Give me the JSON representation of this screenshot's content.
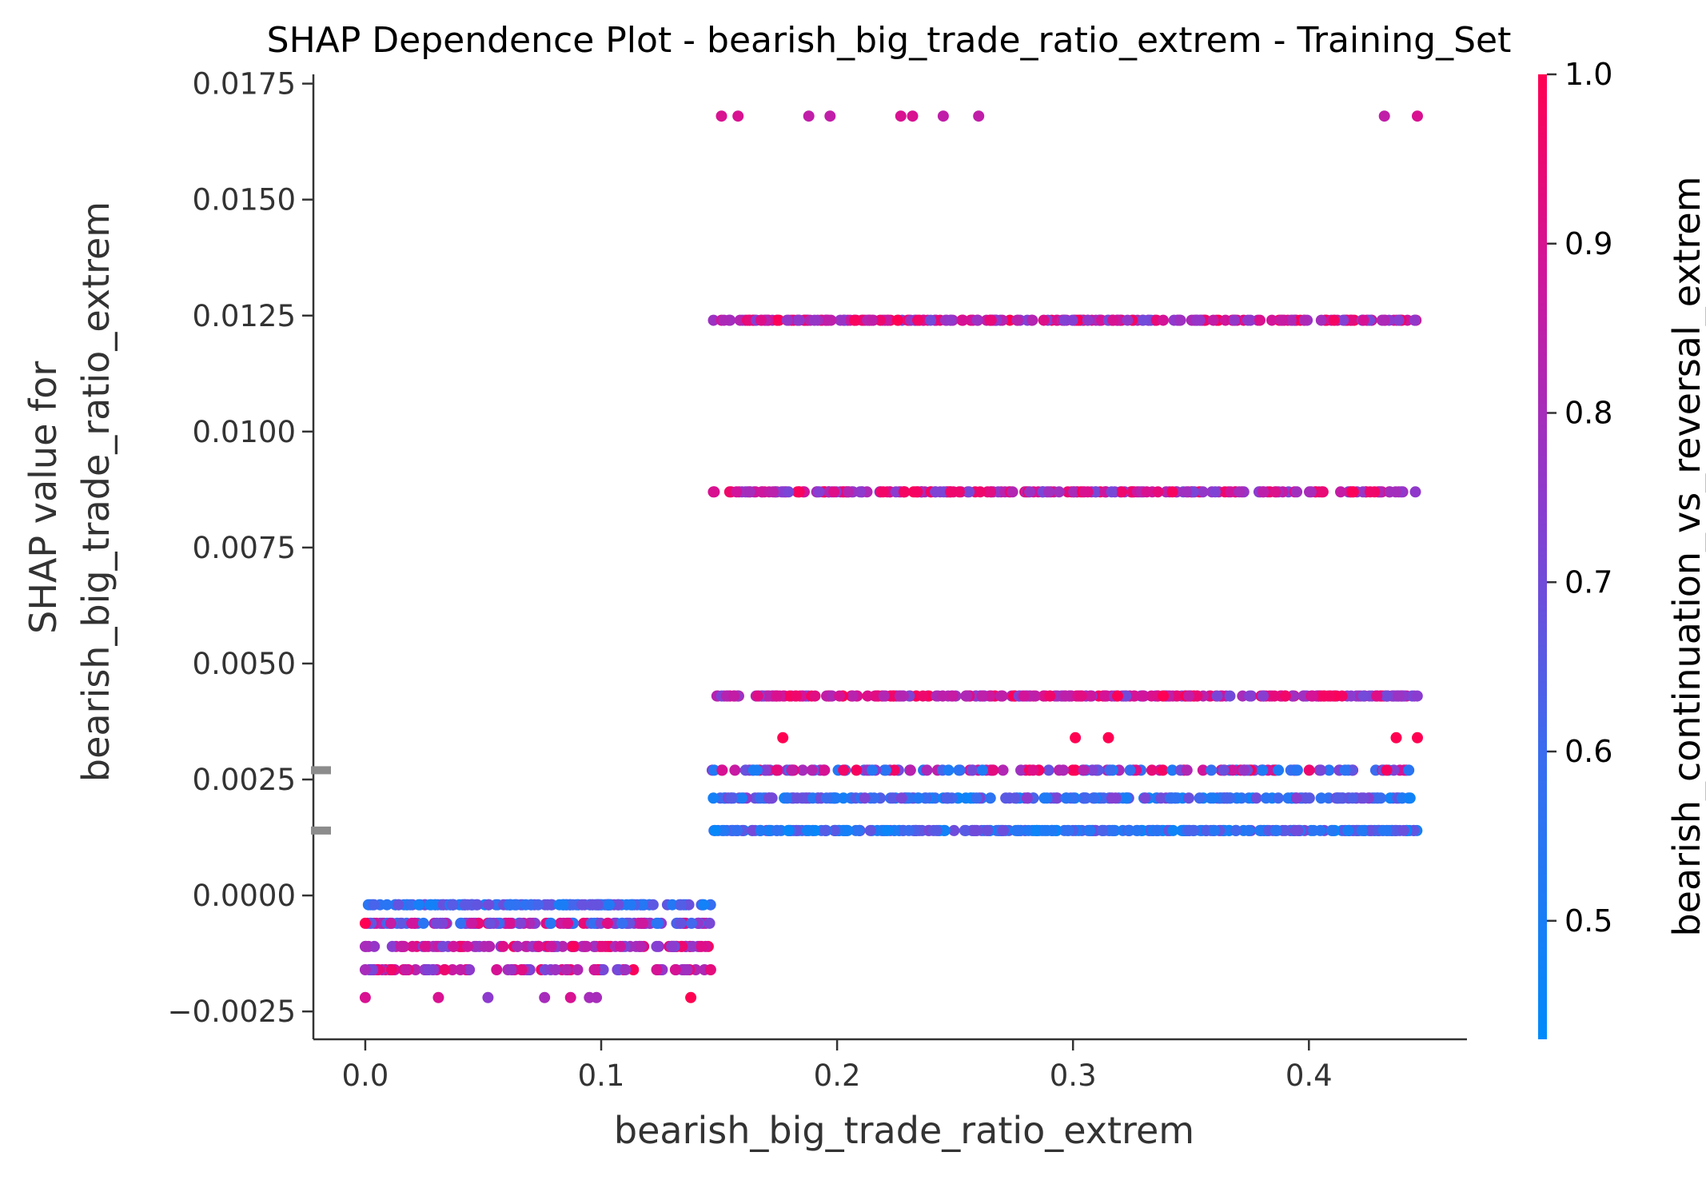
{
  "chart_data": {
    "type": "scatter",
    "title": "SHAP Dependence Plot - bearish_big_trade_ratio_extrem - Training_Set",
    "xlabel": "bearish_big_trade_ratio_extrem",
    "ylabel_lines": [
      "SHAP value for",
      "bearish_big_trade_ratio_extrem"
    ],
    "xlim": [
      -0.022,
      0.467
    ],
    "ylim": [
      -0.0031,
      0.0177
    ],
    "x_ticks": [
      0.0,
      0.1,
      0.2,
      0.3,
      0.4
    ],
    "x_tick_labels": [
      "0.0",
      "0.1",
      "0.2",
      "0.3",
      "0.4"
    ],
    "y_ticks": [
      -0.0025,
      0.0,
      0.0025,
      0.005,
      0.0075,
      0.01,
      0.0125,
      0.015,
      0.0175
    ],
    "y_tick_labels": [
      "−0.0025",
      "0.0000",
      "0.0025",
      "0.0050",
      "0.0075",
      "0.0100",
      "0.0125",
      "0.0150",
      "0.0175"
    ],
    "grid": false,
    "colorbar": {
      "label": "bearish_continuation_vs_reversal_extrem",
      "range": [
        0.43,
        1.0
      ],
      "ticks": [
        0.5,
        0.6,
        0.7,
        0.8,
        0.9,
        1.0
      ],
      "tick_labels": [
        "0.5",
        "0.6",
        "0.7",
        "0.8",
        "0.9",
        "1.0"
      ],
      "color_low": "#008bfb",
      "color_high": "#ff0052"
    },
    "histogram_marks_y": [
      0.0014,
      0.0027
    ],
    "bands": [
      {
        "y": -0.0002,
        "x_range": [
          0.0,
          0.147
        ],
        "color_range": [
          0.48,
          0.7
        ],
        "count": 140
      },
      {
        "y": -0.0006,
        "x_range": [
          0.0,
          0.147
        ],
        "color_range": [
          0.55,
          0.95
        ],
        "count": 120
      },
      {
        "y": -0.0011,
        "x_range": [
          0.0,
          0.147
        ],
        "color_range": [
          0.7,
          1.0
        ],
        "count": 110
      },
      {
        "y": -0.0016,
        "x_range": [
          0.0,
          0.147
        ],
        "color_range": [
          0.7,
          1.0
        ],
        "count": 80
      },
      {
        "y": 0.0014,
        "x_range": [
          0.147,
          0.446
        ],
        "color_range": [
          0.45,
          0.72
        ],
        "count": 320
      },
      {
        "y": 0.0021,
        "x_range": [
          0.147,
          0.446
        ],
        "color_range": [
          0.45,
          0.75
        ],
        "count": 220
      },
      {
        "y": 0.0027,
        "x_range": [
          0.147,
          0.446
        ],
        "color_range": [
          0.5,
          1.0
        ],
        "count": 150
      },
      {
        "y": 0.0043,
        "x_range": [
          0.147,
          0.446
        ],
        "color_range": [
          0.7,
          1.0
        ],
        "count": 320
      },
      {
        "y": 0.0087,
        "x_range": [
          0.147,
          0.446
        ],
        "color_range": [
          0.7,
          1.0
        ],
        "count": 220
      },
      {
        "y": 0.0124,
        "x_range": [
          0.147,
          0.446
        ],
        "color_range": [
          0.7,
          1.0
        ],
        "count": 260
      }
    ],
    "points": [
      {
        "x": 0.0,
        "y": -0.0006,
        "c": 1.0
      },
      {
        "x": 0.0,
        "y": -0.0011,
        "c": 0.8
      },
      {
        "x": 0.0,
        "y": -0.0016,
        "c": 0.8
      },
      {
        "x": 0.0,
        "y": -0.0022,
        "c": 0.9
      },
      {
        "x": 0.031,
        "y": -0.0022,
        "c": 0.9
      },
      {
        "x": 0.052,
        "y": -0.0022,
        "c": 0.75
      },
      {
        "x": 0.076,
        "y": -0.0022,
        "c": 0.8
      },
      {
        "x": 0.087,
        "y": -0.0022,
        "c": 0.9
      },
      {
        "x": 0.095,
        "y": -0.0022,
        "c": 0.8
      },
      {
        "x": 0.098,
        "y": -0.0022,
        "c": 0.8
      },
      {
        "x": 0.138,
        "y": -0.0022,
        "c": 1.0
      },
      {
        "x": 0.177,
        "y": 0.0034,
        "c": 1.0
      },
      {
        "x": 0.301,
        "y": 0.0034,
        "c": 1.0
      },
      {
        "x": 0.315,
        "y": 0.0034,
        "c": 1.0
      },
      {
        "x": 0.437,
        "y": 0.0034,
        "c": 1.0
      },
      {
        "x": 0.446,
        "y": 0.0034,
        "c": 1.0
      },
      {
        "x": 0.151,
        "y": 0.0168,
        "c": 0.9
      },
      {
        "x": 0.158,
        "y": 0.0168,
        "c": 0.9
      },
      {
        "x": 0.188,
        "y": 0.0168,
        "c": 0.85
      },
      {
        "x": 0.197,
        "y": 0.0168,
        "c": 0.85
      },
      {
        "x": 0.227,
        "y": 0.0168,
        "c": 0.9
      },
      {
        "x": 0.232,
        "y": 0.0168,
        "c": 0.9
      },
      {
        "x": 0.245,
        "y": 0.0168,
        "c": 0.85
      },
      {
        "x": 0.26,
        "y": 0.0168,
        "c": 0.85
      },
      {
        "x": 0.432,
        "y": 0.0168,
        "c": 0.85
      },
      {
        "x": 0.446,
        "y": 0.0168,
        "c": 0.9
      }
    ]
  }
}
